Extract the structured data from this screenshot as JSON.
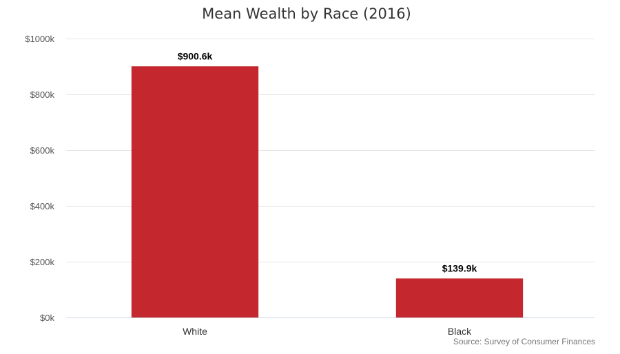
{
  "chart_data": {
    "type": "bar",
    "title": "Mean Wealth by Race (2016)",
    "categories": [
      "White",
      "Black"
    ],
    "values": [
      900.6,
      139.9
    ],
    "data_labels": [
      "$900.6k",
      "$139.9k"
    ],
    "y_ticks": [
      {
        "value": 0,
        "label": "$0k"
      },
      {
        "value": 200,
        "label": "$200k"
      },
      {
        "value": 400,
        "label": "$400k"
      },
      {
        "value": 600,
        "label": "$600k"
      },
      {
        "value": 800,
        "label": "$800k"
      },
      {
        "value": 1000,
        "label": "$1000k"
      }
    ],
    "ylim": [
      0,
      1000
    ],
    "xlabel": "",
    "ylabel": "",
    "grid": true,
    "legend": "none",
    "bar_color": "#c4272e",
    "source": "Source: Survey of Consumer Finances"
  }
}
